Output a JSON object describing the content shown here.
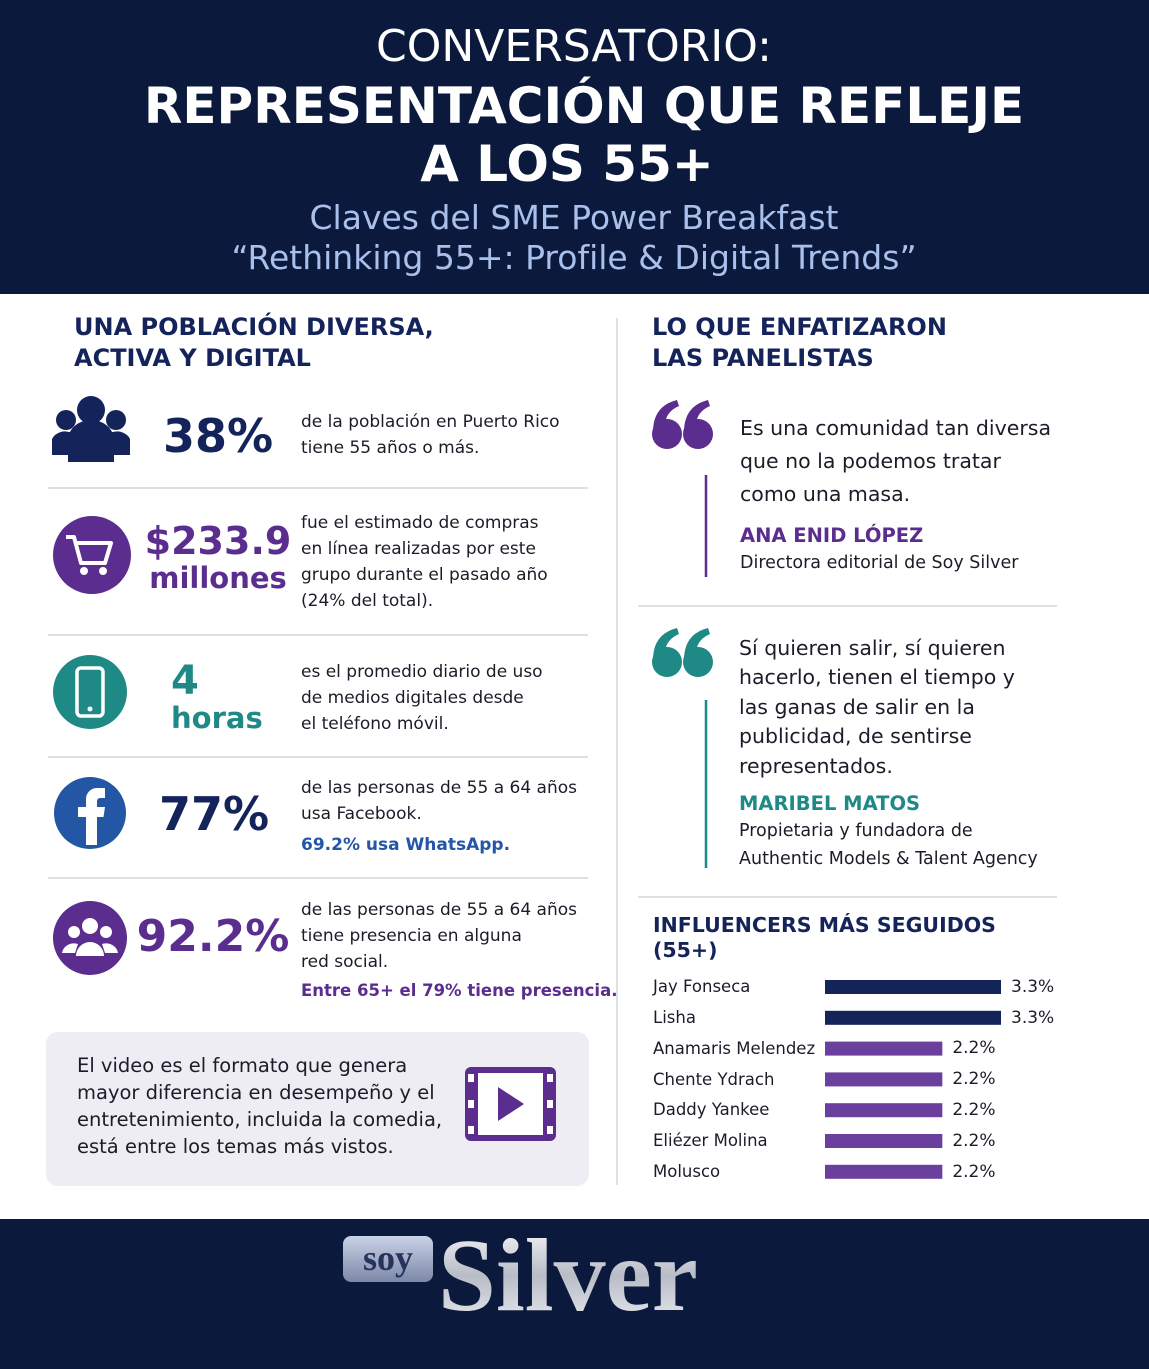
{
  "header": {
    "title": [
      "CONVERSATORIO:",
      "REPRESENTACIÓN QUE REFLEJE",
      "A LOS 55+"
    ],
    "subtitle": [
      "Claves del SME Power Breakfast",
      "“Rethinking 55+: Profile & Digital Trends”"
    ]
  },
  "left": {
    "heading": [
      "UNA POBLACIÓN DIVERSA,",
      "ACTIVA Y DIGITAL"
    ],
    "stats": [
      {
        "figure": "38%",
        "text": [
          "de la población en Puerto Rico",
          "tiene 55 años o más."
        ]
      },
      {
        "figure": "$233.9",
        "unit": "millones",
        "text": [
          "fue el estimado de compras",
          "en línea realizadas por este",
          "grupo durante el pasado año",
          "(24% del total)."
        ]
      },
      {
        "figure": "4",
        "unit": "horas",
        "text": [
          "es el promedio diario de uso",
          "de medios digitales desde",
          "el teléfono móvil."
        ]
      },
      {
        "figure": "77%",
        "text": [
          "de las personas de 55 a 64 años",
          "usa Facebook."
        ],
        "note": "69.2% usa WhatsApp."
      },
      {
        "figure": "92.2%",
        "text": [
          "de las personas de 55 a 64 años",
          "tiene presencia en alguna",
          "red social."
        ],
        "note": "Entre 65+ el 79% tiene presencia."
      }
    ],
    "video_note": [
      "El video es el formato que genera",
      "mayor diferencia en desempeño y el",
      "entretenimiento, incluida la comedia,",
      "está entre los temas más vistos."
    ]
  },
  "right": {
    "heading": [
      "LO QUE ENFATIZARON",
      "LAS PANELISTAS"
    ],
    "quotes": [
      {
        "text": [
          "Es una comunidad tan diversa",
          "que no la podemos tratar",
          "como una masa."
        ],
        "name": "ANA ENID LÓPEZ",
        "role": [
          "Directora editorial de Soy Silver"
        ]
      },
      {
        "text": [
          "Sí quieren salir, sí quieren",
          "hacerlo, tienen el tiempo y",
          "las ganas de salir en la",
          "publicidad, de sentirse",
          "representados."
        ],
        "name": "MARIBEL MATOS",
        "role": [
          "Propietaria y fundadora de",
          "Authentic Models & Talent Agency"
        ]
      }
    ]
  },
  "chart_data": {
    "type": "bar",
    "orientation": "horizontal",
    "title": [
      "INFLUENCERS MÁS SEGUIDOS",
      "(55+)"
    ],
    "categories": [
      "Jay Fonseca",
      "Lisha",
      "Anamaris Melendez",
      "Chente Ydrach",
      "Daddy Yankee",
      "Eliézer Molina",
      "Molusco"
    ],
    "values": [
      3.3,
      3.3,
      2.2,
      2.2,
      2.2,
      2.2,
      2.2
    ],
    "value_labels": [
      "3.3%",
      "3.3%",
      "2.2%",
      "2.2%",
      "2.2%",
      "2.2%",
      "2.2%"
    ],
    "colors": [
      "#14235a",
      "#14235a",
      "#6a3f9e",
      "#6a3f9e",
      "#6a3f9e",
      "#6a3f9e",
      "#6a3f9e"
    ]
  },
  "footer": {
    "logo": [
      "soy",
      "Silver"
    ]
  }
}
